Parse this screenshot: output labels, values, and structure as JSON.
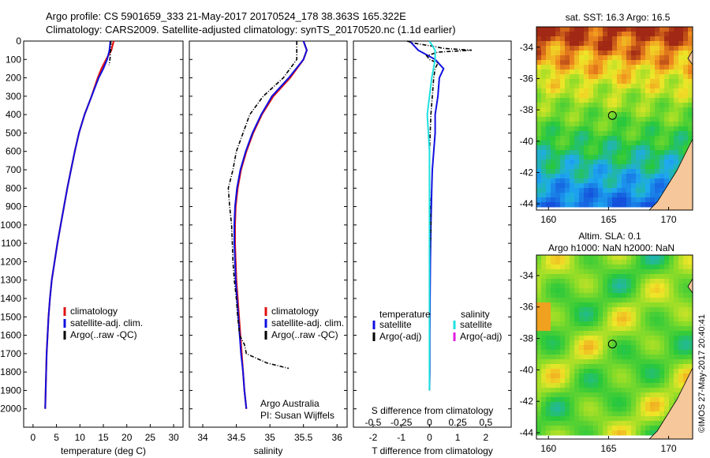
{
  "title_line1": "Argo profile: CS 5901659_333 21-May-2017 20170524_178 38.363S 165.322E",
  "title_line2": "Climatology: CARS2009. Satellite-adjusted climatology: synTS_20170520.nc (1.1d earlier)",
  "colors": {
    "climatology": "#e01010",
    "satellite": "#1010e0",
    "argo": "#000000",
    "sal_satellite": "#20e0e0",
    "sal_argo": "#e020e0",
    "land": "#f6c79a"
  },
  "chart_data": [
    {
      "type": "line",
      "id": "temperature",
      "xlabel": "temperature (deg C)",
      "ylabel": "",
      "xlim": [
        -2,
        32
      ],
      "ylim": [
        2100,
        0
      ],
      "xticks": [
        0,
        5,
        10,
        15,
        20,
        25,
        30
      ],
      "yticks": [
        0,
        100,
        200,
        300,
        400,
        500,
        600,
        700,
        800,
        900,
        1000,
        1100,
        1200,
        1300,
        1400,
        1500,
        1600,
        1700,
        1800,
        1900,
        2000
      ],
      "legend": [
        "climatology",
        "satellite-adj. clim.",
        "Argo(..raw -QC)"
      ],
      "series": [
        {
          "name": "climatology",
          "y": [
            0,
            50,
            100,
            150,
            200,
            300,
            400,
            500,
            600,
            700,
            800,
            900,
            1000,
            1100,
            1200,
            1300,
            1400,
            1500,
            1600,
            1700,
            1800,
            1900,
            2000
          ],
          "x": [
            17.2,
            16.7,
            15.6,
            14.6,
            13.8,
            12.5,
            11.0,
            9.8,
            8.9,
            8.1,
            7.3,
            6.6,
            5.9,
            5.2,
            4.6,
            4.0,
            3.6,
            3.3,
            3.1,
            2.9,
            2.8,
            2.7,
            2.6
          ]
        },
        {
          "name": "satellite-adj. clim.",
          "y": [
            0,
            50,
            100,
            150,
            200,
            300,
            400,
            500,
            600,
            700,
            800,
            900,
            1000,
            1100,
            1200,
            1300,
            1400,
            1500,
            1600,
            1700,
            1800,
            1900,
            2000
          ],
          "x": [
            16.5,
            16.3,
            15.8,
            15.0,
            14.0,
            12.5,
            11.0,
            9.8,
            8.9,
            8.1,
            7.3,
            6.6,
            5.9,
            5.2,
            4.6,
            4.0,
            3.6,
            3.3,
            3.1,
            2.9,
            2.8,
            2.7,
            2.6
          ]
        },
        {
          "name": "Argo(..raw -QC)",
          "y": [
            0,
            20,
            40,
            60,
            80,
            100,
            120,
            130
          ],
          "x": [
            16.6,
            16.6,
            16.6,
            16.5,
            16.5,
            16.4,
            16.3,
            16.2
          ]
        }
      ]
    },
    {
      "type": "line",
      "id": "salinity",
      "xlabel": "salinity",
      "xlim": [
        33.8,
        36.15
      ],
      "ylim": [
        2100,
        0
      ],
      "xticks": [
        34,
        34.5,
        35,
        35.5,
        36
      ],
      "xticklabels": [
        "34",
        "34.5",
        "35",
        "35.5",
        "36"
      ],
      "legend": [
        "climatology",
        "satellite-adj. clim.",
        "Argo(..raw -QC)"
      ],
      "annotation": [
        "Argo Australia",
        "PI: Susan Wijffels"
      ],
      "series": [
        {
          "name": "climatology",
          "y": [
            0,
            50,
            100,
            200,
            300,
            400,
            500,
            600,
            700,
            800,
            900,
            1000,
            1100,
            1200,
            1300,
            1400,
            1500,
            1600,
            1700,
            1800,
            1900,
            2000
          ],
          "x": [
            35.5,
            35.55,
            35.5,
            35.3,
            35.05,
            34.88,
            34.75,
            34.65,
            34.57,
            34.52,
            34.49,
            34.48,
            34.48,
            34.49,
            34.5,
            34.52,
            34.54,
            34.56,
            34.58,
            34.6,
            34.62,
            34.65
          ]
        },
        {
          "name": "satellite-adj. clim.",
          "y": [
            0,
            50,
            100,
            200,
            300,
            400,
            500,
            600,
            700,
            800,
            900,
            1000,
            1100,
            1200,
            1300,
            1400,
            1500,
            1600,
            1700,
            1800,
            1900,
            2000
          ],
          "x": [
            35.5,
            35.55,
            35.5,
            35.28,
            35.03,
            34.87,
            34.74,
            34.64,
            34.56,
            34.51,
            34.48,
            34.47,
            34.47,
            34.48,
            34.49,
            34.51,
            34.53,
            34.55,
            34.57,
            34.6,
            34.62,
            34.65
          ]
        },
        {
          "name": "Argo(..raw -QC)",
          "y": [
            0,
            100,
            200,
            300,
            400,
            500,
            600,
            700,
            800,
            900,
            1000,
            1100,
            1200,
            1300,
            1400,
            1500,
            1600,
            1650,
            1700,
            1750,
            1780
          ],
          "x": [
            35.4,
            35.4,
            35.2,
            34.9,
            34.7,
            34.6,
            34.5,
            34.45,
            34.38,
            34.4,
            34.43,
            34.44,
            34.45,
            34.47,
            34.5,
            34.52,
            34.55,
            34.62,
            34.65,
            34.95,
            35.28
          ]
        }
      ]
    },
    {
      "type": "line",
      "id": "difference",
      "xlabel": "T difference from climatology",
      "xlabel_top": "S difference from climatology",
      "xlim": [
        -2.7,
        2.9
      ],
      "ylim": [
        2100,
        0
      ],
      "xticks": [
        -2,
        -1,
        0,
        1,
        2
      ],
      "xticklabels": [
        "-2",
        "-1",
        "0",
        "1",
        "2"
      ],
      "sticks": [
        -0.5,
        -0.25,
        0,
        0.25,
        0.5
      ],
      "sticklabels": [
        "-0.5",
        "-0.25",
        "0",
        "0.25",
        "0.5"
      ],
      "legend_left_title": "temperature",
      "legend_right_title": "salinity",
      "legend_left": [
        "satellite",
        "Argo(-adj)"
      ],
      "legend_right": [
        "satellite",
        "Argo(-adj)"
      ],
      "series": [
        {
          "name": "T satellite",
          "y": [
            0,
            50,
            100,
            150,
            200,
            300,
            400,
            500,
            600,
            700,
            800,
            1000,
            1200,
            1400,
            1600,
            1800,
            1900
          ],
          "x": [
            -0.7,
            -0.4,
            0.2,
            0.5,
            0.35,
            0.3,
            0.2,
            0.2,
            0.15,
            0.1,
            0.08,
            0.05,
            0.03,
            0.02,
            0.01,
            0.01,
            0.0
          ]
        },
        {
          "name": "T Argo",
          "y": [
            0,
            10,
            20,
            30,
            40,
            50,
            60,
            80,
            100,
            120,
            150,
            200,
            300,
            400,
            600,
            800,
            1000,
            1200,
            1400,
            1600,
            1900
          ],
          "x": [
            -0.8,
            -0.6,
            -0.2,
            0.2,
            0.5,
            1.5,
            0.3,
            -0.1,
            0.0,
            0.3,
            0.2,
            0.15,
            0.1,
            0.05,
            0.0,
            0.0,
            0.05,
            0.0,
            0.0,
            0.0,
            0.0
          ]
        },
        {
          "name": "S satellite",
          "y": [
            0,
            50,
            100,
            200,
            400,
            600,
            800,
            1000,
            1200,
            1400,
            1600,
            1800,
            1900
          ],
          "x": [
            0.0,
            0.05,
            0.05,
            0.02,
            -0.02,
            0.0,
            0.0,
            0.0,
            0.0,
            0.0,
            0.0,
            0.0,
            0.0
          ]
        }
      ]
    }
  ],
  "maps": {
    "sst_title": "sat. SST: 16.3 Argo: 16.5",
    "sla_title1": "Altim. SLA: 0.1",
    "sla_title2": "Argo h1000: NaN h2000: NaN",
    "lon_ticks": [
      "160",
      "165",
      "170"
    ],
    "lat_ticks": [
      "-34",
      "-36",
      "-38",
      "-40",
      "-42",
      "-44"
    ]
  },
  "stamp": "©IMOS 27-May-2017 20:40:41"
}
